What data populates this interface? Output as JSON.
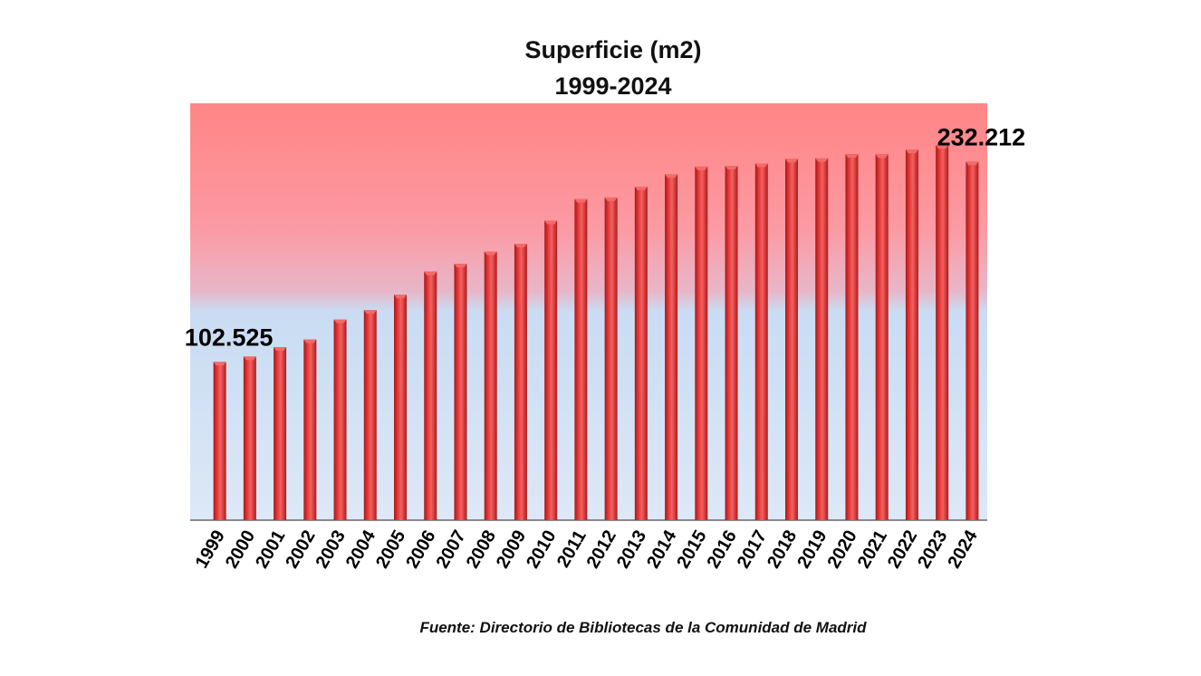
{
  "chart_data": {
    "type": "bar",
    "title": "Superficie (m2)",
    "subtitle": "1999-2024",
    "source": "Fuente: Directorio de Bibliotecas de la Comunidad de Madrid",
    "categories": [
      "1999",
      "2000",
      "2001",
      "2002",
      "2003",
      "2004",
      "2005",
      "2006",
      "2007",
      "2008",
      "2009",
      "2010",
      "2011",
      "2012",
      "2013",
      "2014",
      "2015",
      "2016",
      "2017",
      "2018",
      "2019",
      "2020",
      "2021",
      "2022",
      "2023",
      "2024"
    ],
    "values": [
      102525,
      106000,
      112000,
      117000,
      130000,
      136000,
      146000,
      161000,
      166000,
      174000,
      179000,
      194000,
      208000,
      209000,
      216000,
      224000,
      229000,
      229500,
      231000,
      234000,
      234500,
      237000,
      237000,
      240000,
      243000,
      232212
    ],
    "data_labels": [
      {
        "category": "1999",
        "text": "102.525"
      },
      {
        "category": "2024",
        "text": "232.212"
      }
    ],
    "ylim": [
      0,
      270000
    ],
    "grid": false,
    "legend": "none",
    "colors": {
      "bar": "#d42a2a",
      "bar_light": "#f26a6a",
      "bar_dark": "#a81818",
      "background_top": "#ff8a8a",
      "background_mid": "#f7a9b3",
      "background_bottom": "#c9dcf3"
    }
  }
}
